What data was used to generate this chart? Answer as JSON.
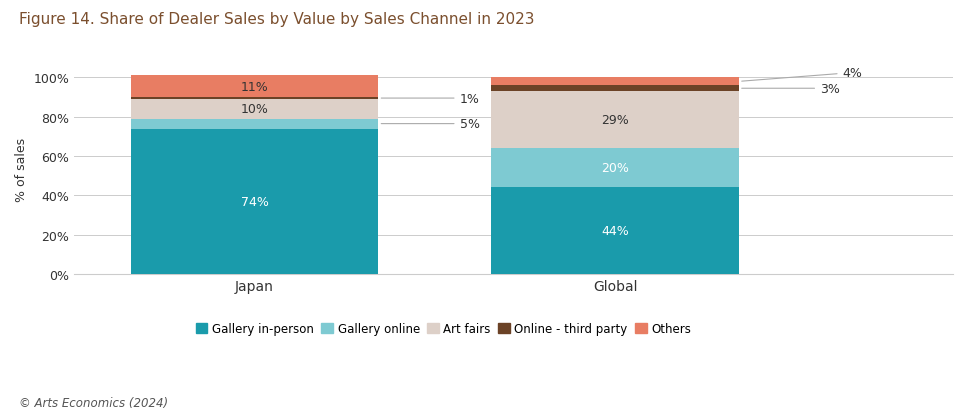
{
  "title": "Figure 14. Share of Dealer Sales by Value by Sales Channel in 2023",
  "title_color": "#7B4F2E",
  "title_fontsize": 11,
  "categories": [
    "Japan",
    "Global"
  ],
  "segments": [
    {
      "label": "Gallery in-person",
      "color": "#1A9BAB",
      "values": [
        74,
        44
      ]
    },
    {
      "label": "Gallery online",
      "color": "#7ECAD2",
      "values": [
        5,
        20
      ]
    },
    {
      "label": "Art fairs",
      "color": "#DDD0C8",
      "values": [
        10,
        29
      ]
    },
    {
      "label": "Online - third party",
      "color": "#6B4226",
      "values": [
        1,
        3
      ]
    },
    {
      "label": "Others",
      "color": "#E87D63",
      "values": [
        11,
        4
      ]
    }
  ],
  "ylabel": "% of sales",
  "ylim": [
    0,
    107
  ],
  "yticks": [
    0,
    20,
    40,
    60,
    80,
    100
  ],
  "ytick_labels": [
    "0%",
    "20%",
    "40%",
    "60%",
    "80%",
    "100%"
  ],
  "bar_width": 0.55,
  "bar_positions": [
    0.3,
    1.1
  ],
  "footnote": "© Arts Economics (2024)",
  "background_color": "#FFFFFF",
  "text_color": "#333333",
  "legend_fontsize": 8.5,
  "annotation_fontsize": 9,
  "ylabel_fontsize": 9,
  "inside_label_threshold": 6
}
